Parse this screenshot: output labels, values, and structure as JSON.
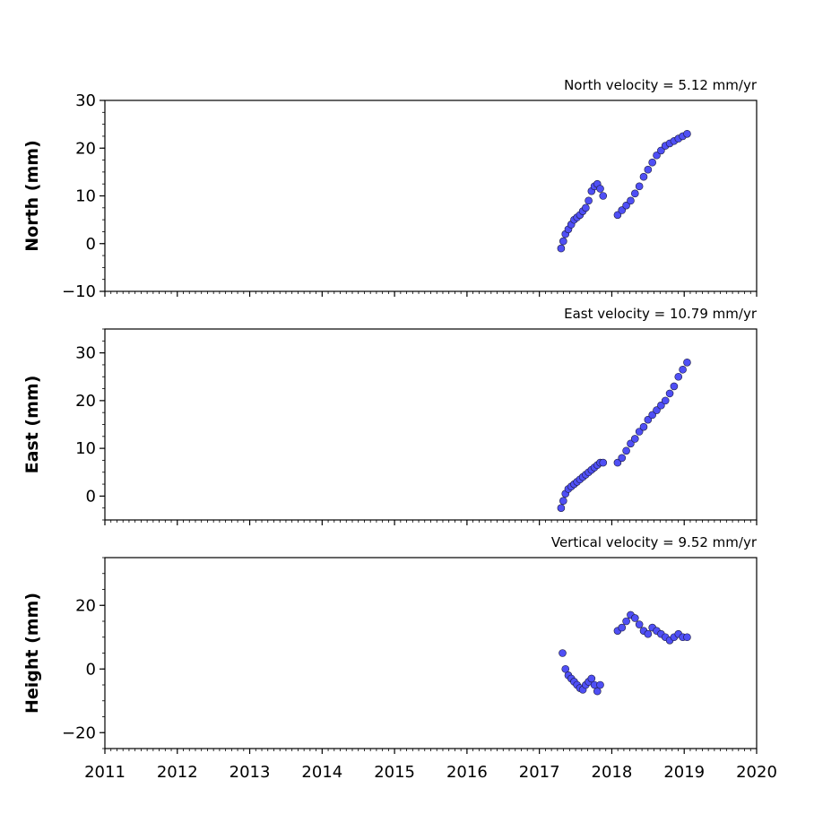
{
  "chart_data": [
    {
      "type": "scatter",
      "annotation": "North velocity = 5.12 mm/yr",
      "ylabel": "North (mm)",
      "xlim": [
        2011,
        2020
      ],
      "ylim": [
        -10,
        30
      ],
      "yticks": [
        -10,
        0,
        10,
        20,
        30
      ],
      "yticklabels": [
        "−10",
        "0",
        "10",
        "20",
        "30"
      ],
      "xticks": [
        2011,
        2012,
        2013,
        2014,
        2015,
        2016,
        2017,
        2018,
        2019,
        2020
      ],
      "show_xticklabels": false,
      "marker_color": "#4f4ff5",
      "x": [
        2017.3,
        2017.33,
        2017.36,
        2017.4,
        2017.44,
        2017.48,
        2017.52,
        2017.56,
        2017.6,
        2017.64,
        2017.68,
        2017.72,
        2017.76,
        2017.8,
        2017.84,
        2017.88,
        2018.08,
        2018.14,
        2018.2,
        2018.26,
        2018.32,
        2018.38,
        2018.44,
        2018.5,
        2018.56,
        2018.62,
        2018.68,
        2018.74,
        2018.8,
        2018.86,
        2018.92,
        2018.98,
        2019.04
      ],
      "y": [
        -1.0,
        0.5,
        2.0,
        3.0,
        4.0,
        5.0,
        5.5,
        6.0,
        6.8,
        7.5,
        9.0,
        11.0,
        12.0,
        12.5,
        11.5,
        10.0,
        6.0,
        7.0,
        8.0,
        9.0,
        10.5,
        12.0,
        14.0,
        15.5,
        17.0,
        18.5,
        19.5,
        20.5,
        21.0,
        21.5,
        22.0,
        22.5,
        23.0
      ]
    },
    {
      "type": "scatter",
      "annotation": "East velocity = 10.79 mm/yr",
      "ylabel": "East (mm)",
      "xlim": [
        2011,
        2020
      ],
      "ylim": [
        -5,
        35
      ],
      "yticks": [
        0,
        10,
        20,
        30
      ],
      "yticklabels": [
        "0",
        "10",
        "20",
        "30"
      ],
      "xticks": [
        2011,
        2012,
        2013,
        2014,
        2015,
        2016,
        2017,
        2018,
        2019,
        2020
      ],
      "show_xticklabels": false,
      "marker_color": "#4f4ff5",
      "x": [
        2017.3,
        2017.33,
        2017.36,
        2017.4,
        2017.44,
        2017.48,
        2017.52,
        2017.56,
        2017.6,
        2017.64,
        2017.68,
        2017.72,
        2017.76,
        2017.8,
        2017.84,
        2017.88,
        2018.08,
        2018.14,
        2018.2,
        2018.26,
        2018.32,
        2018.38,
        2018.44,
        2018.5,
        2018.56,
        2018.62,
        2018.68,
        2018.74,
        2018.8,
        2018.86,
        2018.92,
        2018.98,
        2019.04
      ],
      "y": [
        -2.5,
        -1.0,
        0.5,
        1.5,
        2.0,
        2.5,
        3.0,
        3.5,
        4.0,
        4.5,
        5.0,
        5.5,
        6.0,
        6.5,
        7.0,
        7.0,
        7.0,
        8.0,
        9.5,
        11.0,
        12.0,
        13.5,
        14.5,
        16.0,
        17.0,
        18.0,
        19.0,
        20.0,
        21.5,
        23.0,
        25.0,
        26.5,
        28.0
      ]
    },
    {
      "type": "scatter",
      "annotation": "Vertical velocity = 9.52 mm/yr",
      "ylabel": "Height (mm)",
      "xlim": [
        2011,
        2020
      ],
      "ylim": [
        -25,
        35
      ],
      "yticks": [
        -20,
        0,
        20
      ],
      "yticklabels": [
        "−20",
        "0",
        "20"
      ],
      "xticks": [
        2011,
        2012,
        2013,
        2014,
        2015,
        2016,
        2017,
        2018,
        2019,
        2020
      ],
      "xticklabels": [
        "2011",
        "2012",
        "2013",
        "2014",
        "2015",
        "2016",
        "2017",
        "2018",
        "2019",
        "2020"
      ],
      "show_xticklabels": true,
      "marker_color": "#4f4ff5",
      "x": [
        2017.32,
        2017.36,
        2017.4,
        2017.44,
        2017.48,
        2017.52,
        2017.56,
        2017.6,
        2017.64,
        2017.68,
        2017.72,
        2017.76,
        2017.8,
        2017.84,
        2018.08,
        2018.14,
        2018.2,
        2018.26,
        2018.32,
        2018.38,
        2018.44,
        2018.5,
        2018.56,
        2018.62,
        2018.68,
        2018.74,
        2018.8,
        2018.86,
        2018.92,
        2018.98,
        2019.04
      ],
      "y": [
        5.0,
        0.0,
        -2.0,
        -3.0,
        -4.0,
        -5.0,
        -6.0,
        -6.5,
        -5.0,
        -4.0,
        -3.0,
        -5.0,
        -7.0,
        -5.0,
        12.0,
        13.0,
        15.0,
        17.0,
        16.0,
        14.0,
        12.0,
        11.0,
        13.0,
        12.0,
        11.0,
        10.0,
        9.0,
        10.0,
        11.0,
        10.0,
        10.0
      ]
    }
  ]
}
